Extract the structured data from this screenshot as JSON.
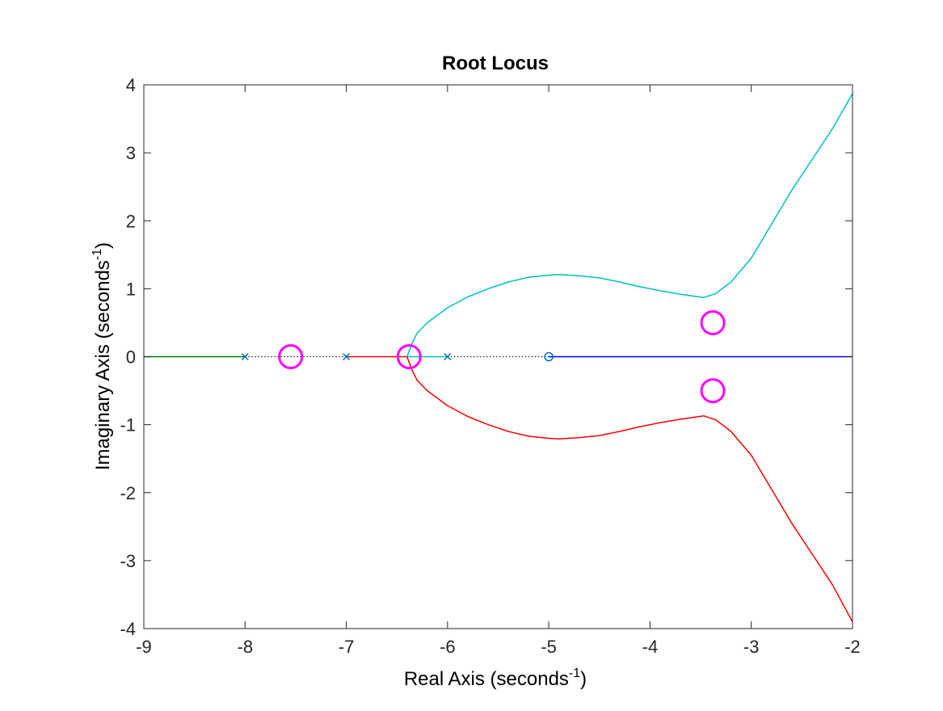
{
  "chart_data": {
    "type": "line",
    "title": "Root Locus",
    "xlabel": {
      "main": "Real Axis (seconds",
      "sup": "-1",
      "close": ")"
    },
    "ylabel": {
      "main": "Imaginary Axis (seconds",
      "sup": "-1",
      "close": ")"
    },
    "xlim": [
      -9,
      -2
    ],
    "ylim": [
      -4,
      4
    ],
    "xticks": [
      -9,
      -8,
      -7,
      -6,
      -5,
      -4,
      -3,
      -2
    ],
    "yticks": [
      -4,
      -3,
      -2,
      -1,
      0,
      1,
      2,
      3,
      4
    ],
    "grid": false,
    "series": [
      {
        "color": "#008000",
        "points": [
          [
            -9,
            0
          ],
          [
            -8,
            0
          ]
        ]
      },
      {
        "color": "#FF0000",
        "points": [
          [
            -7,
            0
          ],
          [
            -6.4,
            0
          ]
        ]
      },
      {
        "color": "#00BFBF",
        "points": [
          [
            -6.4,
            0
          ],
          [
            -6.0,
            0
          ]
        ]
      },
      {
        "color": "#0000FF",
        "points": [
          [
            -5,
            0
          ],
          [
            -2,
            0
          ]
        ]
      },
      {
        "color": "#00BFBF",
        "points": [
          [
            -6.4,
            0
          ],
          [
            -6.35,
            0.2
          ],
          [
            -6.3,
            0.35
          ],
          [
            -6.2,
            0.5
          ],
          [
            -6.0,
            0.72
          ],
          [
            -5.8,
            0.88
          ],
          [
            -5.6,
            1.0
          ],
          [
            -5.4,
            1.1
          ],
          [
            -5.2,
            1.17
          ],
          [
            -5.0,
            1.2
          ],
          [
            -4.9,
            1.21
          ],
          [
            -4.7,
            1.19
          ],
          [
            -4.5,
            1.16
          ],
          [
            -4.3,
            1.1
          ],
          [
            -4.1,
            1.03
          ],
          [
            -3.9,
            0.97
          ],
          [
            -3.7,
            0.92
          ],
          [
            -3.47,
            0.87
          ],
          [
            -3.35,
            0.93
          ],
          [
            -3.2,
            1.1
          ],
          [
            -3.0,
            1.45
          ],
          [
            -2.8,
            1.95
          ],
          [
            -2.6,
            2.45
          ],
          [
            -2.4,
            2.9
          ],
          [
            -2.2,
            3.35
          ],
          [
            -2.0,
            3.87
          ]
        ]
      },
      {
        "color": "#FF0000",
        "points": [
          [
            -6.4,
            0
          ],
          [
            -6.35,
            -0.2
          ],
          [
            -6.3,
            -0.35
          ],
          [
            -6.2,
            -0.5
          ],
          [
            -6.0,
            -0.72
          ],
          [
            -5.8,
            -0.88
          ],
          [
            -5.6,
            -1.0
          ],
          [
            -5.4,
            -1.1
          ],
          [
            -5.2,
            -1.17
          ],
          [
            -5.0,
            -1.2
          ],
          [
            -4.9,
            -1.21
          ],
          [
            -4.7,
            -1.19
          ],
          [
            -4.5,
            -1.16
          ],
          [
            -4.3,
            -1.1
          ],
          [
            -4.1,
            -1.03
          ],
          [
            -3.9,
            -0.97
          ],
          [
            -3.7,
            -0.92
          ],
          [
            -3.47,
            -0.87
          ],
          [
            -3.35,
            -0.93
          ],
          [
            -3.2,
            -1.1
          ],
          [
            -3.0,
            -1.45
          ],
          [
            -2.8,
            -1.95
          ],
          [
            -2.6,
            -2.45
          ],
          [
            -2.4,
            -2.9
          ],
          [
            -2.2,
            -3.35
          ],
          [
            -2.0,
            -3.9
          ]
        ]
      }
    ],
    "dotted_segments": [
      [
        -8,
        -7
      ],
      [
        -6,
        -5
      ]
    ],
    "poles": [
      [
        -8,
        0
      ],
      [
        -7,
        0
      ],
      [
        -6,
        0
      ]
    ],
    "zeros": [
      [
        -5,
        0
      ]
    ],
    "pole_color": "#0072BD",
    "zero_color": "#0072BD",
    "highlighted_points": [
      [
        -7.55,
        0
      ],
      [
        -6.38,
        0
      ],
      [
        -3.38,
        0.5
      ],
      [
        -3.38,
        -0.5
      ]
    ],
    "highlight_color": "#FF00FF"
  }
}
